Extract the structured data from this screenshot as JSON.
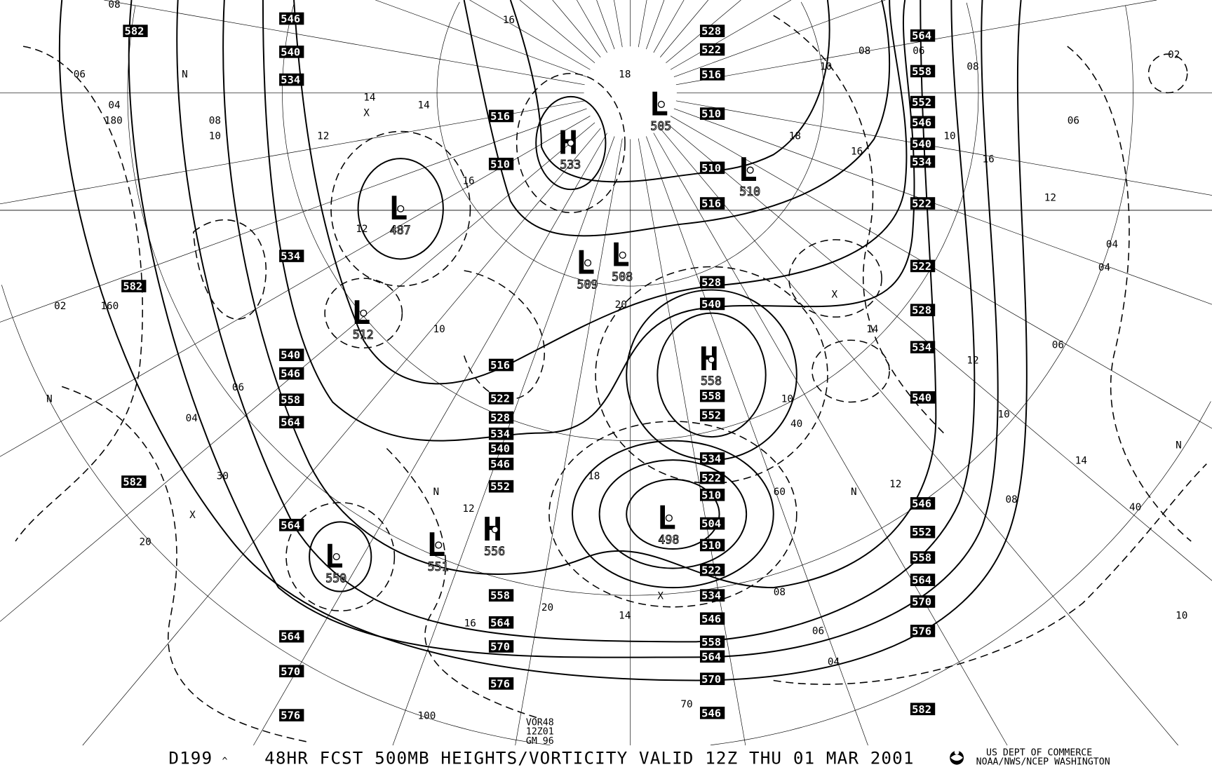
{
  "caption": {
    "id": "D199",
    "title": "48HR FCST 500MB  HEIGHTS/VORTICITY VALID 12Z THU 01 MAR 2001",
    "agency_line1": "US DEPT OF COMMERCE",
    "agency_line2": "NOAA/NWS/NCEP WASHINGTON",
    "run_info": [
      "VOR48",
      "12Z01",
      "GM 96"
    ]
  },
  "height_labels": [
    "582",
    "546",
    "540",
    "534",
    "582",
    "534",
    "540",
    "546",
    "558",
    "564",
    "582",
    "564",
    "564",
    "570",
    "576",
    "516",
    "510",
    "516",
    "522",
    "528",
    "534",
    "540",
    "546",
    "552",
    "558",
    "564",
    "570",
    "576",
    "528",
    "522",
    "516",
    "510",
    "510",
    "516",
    "528",
    "540",
    "558",
    "552",
    "534",
    "522",
    "510",
    "504",
    "510",
    "522",
    "534",
    "546",
    "558",
    "564",
    "570",
    "546",
    "564",
    "558",
    "552",
    "546",
    "540",
    "534",
    "522",
    "522",
    "528",
    "534",
    "540",
    "546",
    "552",
    "558",
    "564",
    "570",
    "576",
    "582"
  ],
  "centers": [
    {
      "type": "H",
      "value": "533"
    },
    {
      "type": "L",
      "value": "505"
    },
    {
      "type": "L",
      "value": "510"
    },
    {
      "type": "L",
      "value": "487"
    },
    {
      "type": "L",
      "value": "509"
    },
    {
      "type": "L",
      "value": "508"
    },
    {
      "type": "L",
      "value": "512"
    },
    {
      "type": "H",
      "value": "558"
    },
    {
      "type": "L",
      "value": "498"
    },
    {
      "type": "L",
      "value": "550"
    },
    {
      "type": "L",
      "value": "551"
    },
    {
      "type": "H",
      "value": "556"
    }
  ],
  "vorticity_labels": [
    "08",
    "06",
    "04",
    "10",
    "12",
    "14",
    "16",
    "18",
    "20",
    "12",
    "14",
    "16",
    "08",
    "10",
    "06",
    "04",
    "02",
    "12",
    "14",
    "16",
    "18",
    "20",
    "10",
    "08",
    "06",
    "04",
    "12",
    "14",
    "16",
    "10",
    "08",
    "06",
    "04",
    "02",
    "06",
    "08",
    "10",
    "12",
    "14",
    "16",
    "18",
    "12",
    "10",
    "08",
    "06",
    "04",
    "N",
    "N",
    "N",
    "N",
    "N",
    "X",
    "X",
    "X",
    "X",
    "160",
    "180",
    "100",
    "70",
    "60",
    "40",
    "30",
    "20",
    "10",
    "40",
    "20"
  ],
  "colors": {
    "lines": "#000000",
    "background": "#ffffff",
    "height_box": "#000000"
  }
}
